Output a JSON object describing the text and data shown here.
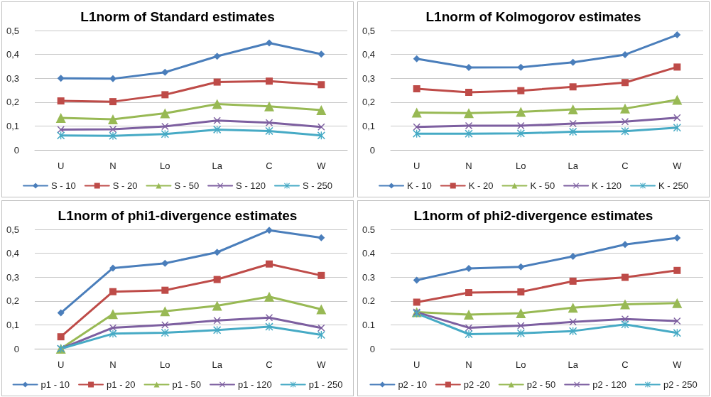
{
  "chart_data": [
    {
      "type": "line",
      "title": "L1norm of Standard estimates",
      "categories": [
        "U",
        "N",
        "Lo",
        "La",
        "C",
        "W"
      ],
      "ylim": [
        0,
        0.5
      ],
      "yticks": [
        0,
        {
          "value": 0.1,
          "label": "0,1"
        },
        {
          "value": 0.2,
          "label": "0,2"
        },
        {
          "value": 0.3,
          "label": "0,3"
        },
        {
          "value": 0.4,
          "label": "0,4"
        },
        {
          "value": 0.5,
          "label": "0,5"
        }
      ],
      "grid": "y",
      "legend": "bottom",
      "line_style": "solid",
      "series": [
        {
          "name": "S - 10",
          "color": "#4a7ebb",
          "marker": "diamond",
          "values": [
            0.3,
            0.298,
            0.325,
            0.392,
            0.448,
            0.401
          ]
        },
        {
          "name": "S - 20",
          "color": "#be4b48",
          "marker": "square",
          "values": [
            0.205,
            0.202,
            0.231,
            0.284,
            0.288,
            0.273
          ]
        },
        {
          "name": "S - 50",
          "color": "#98b954",
          "marker": "triangle",
          "values": [
            0.134,
            0.128,
            0.153,
            0.192,
            0.182,
            0.167
          ]
        },
        {
          "name": "S - 120",
          "color": "#7d5fa0",
          "marker": "cross",
          "values": [
            0.085,
            0.086,
            0.098,
            0.123,
            0.114,
            0.096
          ]
        },
        {
          "name": "S - 250",
          "color": "#46aac5",
          "marker": "star",
          "values": [
            0.06,
            0.059,
            0.066,
            0.085,
            0.079,
            0.06
          ]
        }
      ]
    },
    {
      "type": "line",
      "title": "L1norm of Kolmogorov estimates",
      "categories": [
        "U",
        "N",
        "Lo",
        "La",
        "C",
        "W"
      ],
      "ylim": [
        0,
        0.5
      ],
      "yticks": [
        0,
        {
          "value": 0.1,
          "label": "0,1"
        },
        {
          "value": 0.2,
          "label": "0,2"
        },
        {
          "value": 0.3,
          "label": "0,3"
        },
        {
          "value": 0.4,
          "label": "0,4"
        },
        {
          "value": 0.5,
          "label": "0,5"
        }
      ],
      "grid": "y",
      "legend": "bottom",
      "line_style": "solid",
      "series": [
        {
          "name": "K - 10",
          "color": "#4a7ebb",
          "marker": "diamond",
          "values": [
            0.382,
            0.345,
            0.346,
            0.367,
            0.399,
            0.482
          ]
        },
        {
          "name": "K - 20",
          "color": "#be4b48",
          "marker": "square",
          "values": [
            0.256,
            0.241,
            0.248,
            0.264,
            0.282,
            0.347
          ]
        },
        {
          "name": "K - 50",
          "color": "#98b954",
          "marker": "triangle",
          "values": [
            0.156,
            0.154,
            0.159,
            0.17,
            0.173,
            0.21
          ]
        },
        {
          "name": "K - 120",
          "color": "#7d5fa0",
          "marker": "cross",
          "values": [
            0.096,
            0.101,
            0.101,
            0.11,
            0.118,
            0.135
          ]
        },
        {
          "name": "K - 250",
          "color": "#46aac5",
          "marker": "star",
          "values": [
            0.068,
            0.068,
            0.069,
            0.076,
            0.078,
            0.093
          ]
        }
      ]
    },
    {
      "type": "line",
      "title": "L1norm of phi1-divergence estimates",
      "categories": [
        "U",
        "N",
        "Lo",
        "La",
        "C",
        "W"
      ],
      "ylim": [
        0,
        0.5
      ],
      "yticks": [
        0,
        {
          "value": 0.1,
          "label": "0,1"
        },
        {
          "value": 0.2,
          "label": "0,2"
        },
        {
          "value": 0.3,
          "label": "0,3"
        },
        {
          "value": 0.4,
          "label": "0,4"
        },
        {
          "value": 0.5,
          "label": "0,5"
        }
      ],
      "grid": "y",
      "legend": "bottom",
      "line_style": "solid",
      "series": [
        {
          "name": "p1 - 10",
          "color": "#4a7ebb",
          "marker": "diamond",
          "values": [
            0.15,
            0.338,
            0.358,
            0.404,
            0.496,
            0.465
          ]
        },
        {
          "name": "p1 - 20",
          "color": "#be4b48",
          "marker": "square",
          "values": [
            0.05,
            0.239,
            0.245,
            0.29,
            0.355,
            0.307
          ]
        },
        {
          "name": "p1 - 50",
          "color": "#98b954",
          "marker": "triangle",
          "values": [
            0,
            0.145,
            0.157,
            0.18,
            0.218,
            0.165
          ]
        },
        {
          "name": "p1 - 120",
          "color": "#7d5fa0",
          "marker": "cross",
          "values": [
            0,
            0.088,
            0.1,
            0.118,
            0.13,
            0.087
          ]
        },
        {
          "name": "p1 - 250",
          "color": "#46aac5",
          "marker": "star",
          "values": [
            0,
            0.063,
            0.067,
            0.078,
            0.092,
            0.058
          ]
        }
      ]
    },
    {
      "type": "line",
      "title": "L1norm of phi2-divergence estimates",
      "categories": [
        "U",
        "N",
        "Lo",
        "La",
        "C",
        "W"
      ],
      "ylim": [
        0,
        0.5
      ],
      "yticks": [
        0,
        0.1,
        0.2,
        0.3,
        0.4,
        0.5
      ],
      "grid": "y",
      "legend": "bottom",
      "line_style": "solid",
      "series": [
        {
          "name": "p2 - 10",
          "color": "#4a7ebb",
          "marker": "diamond",
          "values": [
            0.287,
            0.336,
            0.343,
            0.387,
            0.437,
            0.464
          ]
        },
        {
          "name": "p2 -20",
          "color": "#be4b48",
          "marker": "square",
          "values": [
            0.195,
            0.235,
            0.238,
            0.283,
            0.299,
            0.328
          ]
        },
        {
          "name": "p2 - 50",
          "color": "#98b954",
          "marker": "triangle",
          "values": [
            0.153,
            0.143,
            0.149,
            0.172,
            0.186,
            0.191
          ]
        },
        {
          "name": "p2 - 120",
          "color": "#7d5fa0",
          "marker": "cross",
          "values": [
            0.153,
            0.088,
            0.097,
            0.112,
            0.124,
            0.116
          ]
        },
        {
          "name": "p2 - 250",
          "color": "#46aac5",
          "marker": "star",
          "values": [
            0.148,
            0.061,
            0.065,
            0.074,
            0.102,
            0.066
          ]
        }
      ]
    }
  ]
}
